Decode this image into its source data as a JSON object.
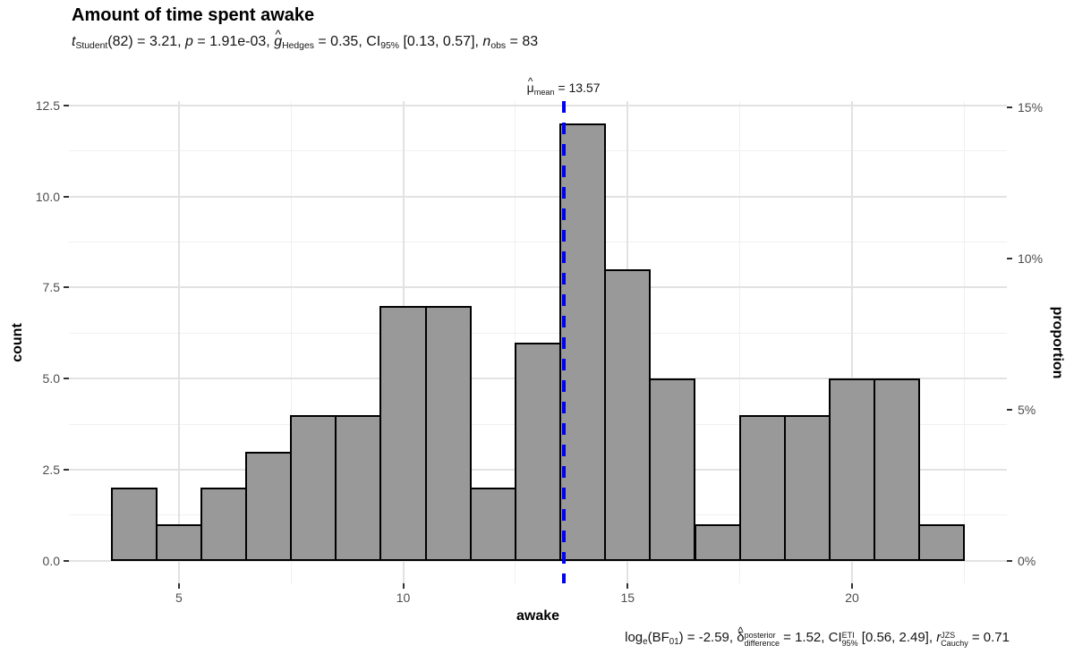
{
  "title": "Amount of time spent awake",
  "subtitle_segments": [
    {
      "t": "t",
      "it": true
    },
    {
      "t": "Student",
      "sub": true
    },
    {
      "t": "(82) = 3.21, "
    },
    {
      "t": "p",
      "it": true
    },
    {
      "t": " = 1.91e-03, "
    },
    {
      "t": "g",
      "it": true,
      "hat": true
    },
    {
      "t": "Hedges",
      "sub": true
    },
    {
      "t": " = 0.35, CI"
    },
    {
      "t": "95%",
      "sub": true
    },
    {
      "t": " [0.13, 0.57], "
    },
    {
      "t": "n",
      "it": true
    },
    {
      "t": "obs",
      "sub": true
    },
    {
      "t": " = 83"
    }
  ],
  "caption_segments": [
    {
      "t": "log"
    },
    {
      "t": "e",
      "sub": true
    },
    {
      "t": "(BF"
    },
    {
      "t": "01",
      "sub": true
    },
    {
      "t": ") = -2.59, "
    },
    {
      "t": "δ",
      "hat": true
    },
    {
      "stack": {
        "sup": "posterior",
        "sub": "difference"
      }
    },
    {
      "t": " = 1.52, CI"
    },
    {
      "stack": {
        "sup": "ETI",
        "sub": "95%"
      }
    },
    {
      "t": " [0.56, 2.49], "
    },
    {
      "t": "r",
      "it": true
    },
    {
      "stack": {
        "sup": "JZS",
        "sub": "Cauchy"
      }
    },
    {
      "t": " = 0.71"
    }
  ],
  "mean_label_segments": [
    {
      "t": "μ",
      "hat": true
    },
    {
      "t": "mean",
      "sub": true
    },
    {
      "t": " = 13.57"
    }
  ],
  "chart_data": {
    "type": "bar",
    "subtype": "histogram",
    "title": "Amount of time spent awake",
    "xlabel": "awake",
    "ylabel_left": "count",
    "ylabel_right": "proportion",
    "n_obs": 83,
    "bin_start": 3.5,
    "bin_width": 1,
    "counts": [
      2,
      1,
      2,
      3,
      4,
      4,
      7,
      7,
      2,
      6,
      12,
      8,
      5,
      1,
      4,
      4,
      5,
      5,
      1
    ],
    "x_domain": [
      2.55,
      23.45
    ],
    "y_domain": [
      -0.62,
      12.62
    ],
    "x_ticks": [
      {
        "value": 5,
        "label": "5"
      },
      {
        "value": 10,
        "label": "10"
      },
      {
        "value": 15,
        "label": "15"
      },
      {
        "value": 20,
        "label": "20"
      }
    ],
    "x_minor_ticks": [
      7.5,
      12.5,
      17.5,
      22.5
    ],
    "y_ticks": [
      {
        "value": 0,
        "label": "0.0"
      },
      {
        "value": 2.5,
        "label": "2.5"
      },
      {
        "value": 5,
        "label": "5.0"
      },
      {
        "value": 7.5,
        "label": "7.5"
      },
      {
        "value": 10,
        "label": "10.0"
      },
      {
        "value": 12.5,
        "label": "12.5"
      }
    ],
    "y_minor_ticks": [
      1.25,
      3.75,
      6.25,
      8.75,
      11.25
    ],
    "right_ticks": [
      {
        "proportion": 0,
        "label": "0%"
      },
      {
        "proportion": 0.05,
        "label": "5%"
      },
      {
        "proportion": 0.1,
        "label": "10%"
      },
      {
        "proportion": 0.15,
        "label": "15%"
      }
    ],
    "mean_line": {
      "value": 13.57,
      "label_value": "13.57"
    },
    "grid": true,
    "legend": "none",
    "colors": {
      "bar_fill": "#999999",
      "bar_stroke": "#000000",
      "mean_line": "#0000f5",
      "grid_major": "#e2e2e2",
      "grid_minor": "#f0f0f0",
      "tick_label": "#4d4d4d",
      "tick_mark": "#333333"
    }
  }
}
